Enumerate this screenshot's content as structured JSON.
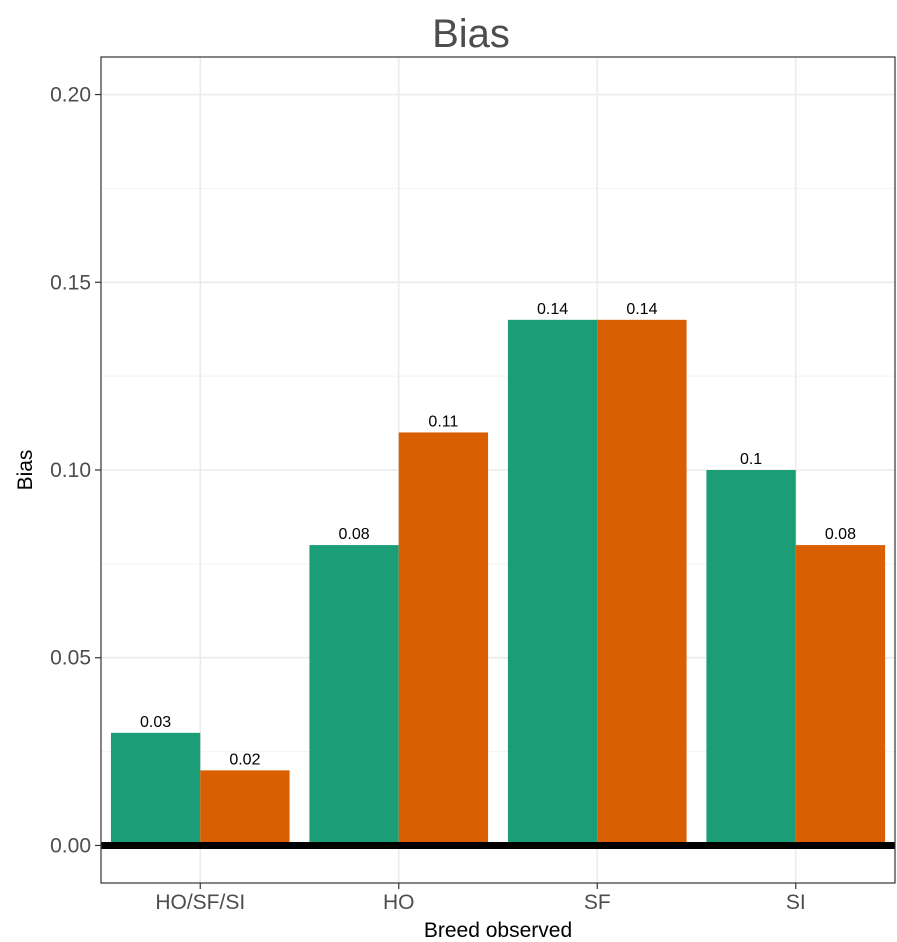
{
  "chart_data": {
    "type": "bar",
    "title": "Bias",
    "xlabel": "Breed observed",
    "ylabel": "Bias",
    "categories": [
      "HO/SF/SI",
      "HO",
      "SF",
      "SI"
    ],
    "series": [
      {
        "values": [
          0.03,
          0.08,
          0.14,
          0.1
        ],
        "labels": [
          "0.03",
          "0.08",
          "0.14",
          "0.1"
        ],
        "color": "#1b9e77"
      },
      {
        "values": [
          0.02,
          0.11,
          0.14,
          0.08
        ],
        "labels": [
          "0.02",
          "0.11",
          "0.14",
          "0.08"
        ],
        "color": "#d95f02"
      }
    ],
    "y_ticks": [
      0.0,
      0.05,
      0.1,
      0.15,
      0.2
    ],
    "y_tick_labels": [
      "0.00",
      "0.05",
      "0.10",
      "0.15",
      "0.20"
    ],
    "ylim": [
      -0.01,
      0.21
    ],
    "grid": true,
    "reference_line": 0
  }
}
